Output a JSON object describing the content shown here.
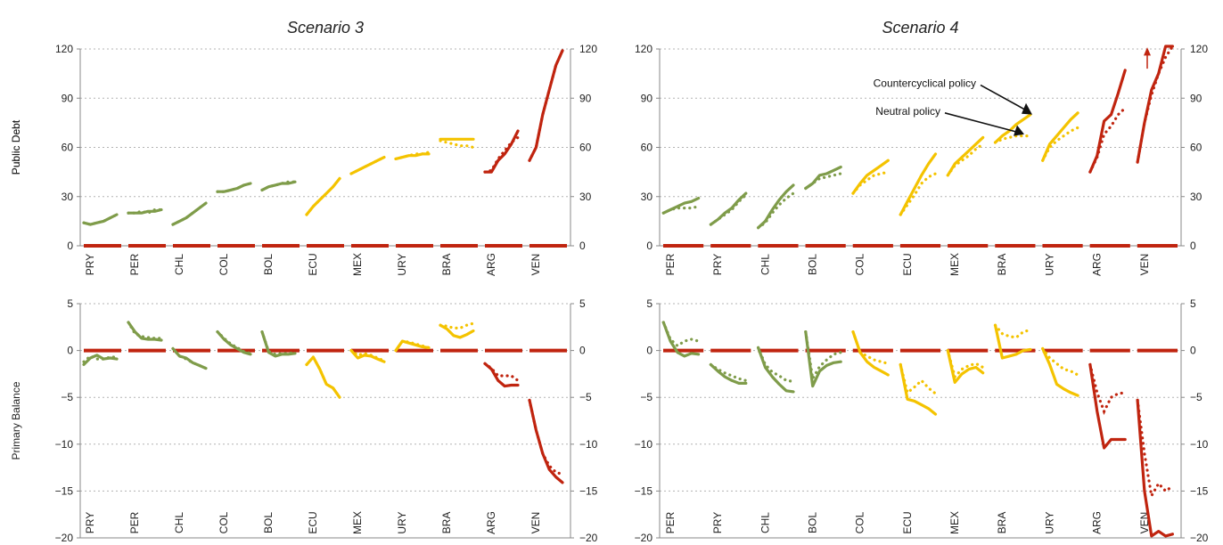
{
  "colors": {
    "green": "#7f9c4a",
    "yellow": "#f4c300",
    "red": "#c0240f",
    "grid": "#b3b3b3"
  },
  "labels": {
    "public_debt": "Public Debt",
    "primary_balance": "Primary Balance"
  },
  "chart_data": [
    {
      "type": "line",
      "title": "Scenario 3",
      "ylabel": "Public Debt",
      "ylim": [
        0,
        120
      ],
      "yticks": [
        0,
        30,
        60,
        90,
        120
      ],
      "grid": true,
      "zero_line": "dashed-red",
      "categories": [
        "PRY",
        "PER",
        "CHL",
        "COL",
        "BOL",
        "ECU",
        "MEX",
        "URY",
        "BRA",
        "ARG",
        "VEN"
      ],
      "series": [
        {
          "cat": "PRY",
          "color": "green",
          "solid": [
            14,
            13,
            14,
            15,
            17,
            19
          ],
          "dotted": [
            14,
            13,
            14,
            15,
            17,
            19
          ]
        },
        {
          "cat": "PER",
          "color": "green",
          "solid": [
            20,
            20,
            20,
            21,
            21,
            22
          ],
          "dotted": [
            20,
            20,
            21,
            20,
            22,
            22
          ]
        },
        {
          "cat": "CHL",
          "color": "green",
          "solid": [
            13,
            15,
            17,
            20,
            23,
            26
          ],
          "dotted": [
            13,
            15,
            17,
            20,
            23,
            26
          ]
        },
        {
          "cat": "COL",
          "color": "green",
          "solid": [
            33,
            33,
            34,
            35,
            37,
            38
          ],
          "dotted": [
            33,
            33,
            34,
            35,
            37,
            38
          ]
        },
        {
          "cat": "BOL",
          "color": "green",
          "solid": [
            34,
            36,
            37,
            38,
            38,
            39
          ],
          "dotted": [
            34,
            36,
            37,
            38,
            39,
            39
          ]
        },
        {
          "cat": "ECU",
          "color": "yellow",
          "solid": [
            19,
            24,
            28,
            32,
            36,
            41
          ],
          "dotted": [
            19,
            24,
            28,
            32,
            36,
            41
          ]
        },
        {
          "cat": "MEX",
          "color": "yellow",
          "solid": [
            44,
            46,
            48,
            50,
            52,
            54
          ],
          "dotted": [
            44,
            46,
            48,
            50,
            52,
            54
          ]
        },
        {
          "cat": "URY",
          "color": "yellow",
          "solid": [
            53,
            54,
            55,
            55,
            56,
            56
          ],
          "dotted": [
            53,
            54,
            55,
            56,
            56,
            57
          ]
        },
        {
          "cat": "BRA",
          "color": "yellow",
          "solid": [
            65,
            65,
            65,
            65,
            65,
            65
          ],
          "dotted": [
            64,
            63,
            62,
            61,
            61,
            60
          ]
        },
        {
          "cat": "ARG",
          "color": "red",
          "solid": [
            45,
            45,
            52,
            56,
            62,
            70
          ],
          "dotted": [
            45,
            46,
            53,
            58,
            63,
            66
          ]
        },
        {
          "cat": "VEN",
          "color": "red",
          "solid": [
            52,
            60,
            80,
            95,
            110,
            119
          ],
          "dotted": [
            52,
            60,
            80,
            95,
            110,
            119
          ]
        }
      ]
    },
    {
      "type": "line",
      "title": "Scenario 4",
      "ylabel": "Public Debt",
      "ylim": [
        0,
        120
      ],
      "yticks": [
        0,
        30,
        60,
        90,
        120
      ],
      "grid": true,
      "zero_line": "dashed-red",
      "categories": [
        "PER",
        "PRY",
        "CHL",
        "BOL",
        "COL",
        "ECU",
        "MEX",
        "BRA",
        "URY",
        "ARG",
        "VEN"
      ],
      "annotations": [
        "Countercyclical policy",
        "Neutral policy"
      ],
      "series": [
        {
          "cat": "PER",
          "color": "green",
          "solid": [
            20,
            22,
            24,
            26,
            27,
            29
          ],
          "dotted": [
            20,
            22,
            23,
            23,
            23,
            24
          ]
        },
        {
          "cat": "PRY",
          "color": "green",
          "solid": [
            13,
            16,
            20,
            23,
            28,
            32
          ],
          "dotted": [
            13,
            16,
            19,
            22,
            27,
            31
          ]
        },
        {
          "cat": "CHL",
          "color": "green",
          "solid": [
            11,
            15,
            22,
            28,
            33,
            37
          ],
          "dotted": [
            11,
            14,
            20,
            25,
            29,
            32
          ]
        },
        {
          "cat": "BOL",
          "color": "green",
          "solid": [
            35,
            38,
            43,
            44,
            46,
            48
          ],
          "dotted": [
            35,
            38,
            41,
            42,
            43,
            44
          ]
        },
        {
          "cat": "COL",
          "color": "yellow",
          "solid": [
            32,
            38,
            43,
            46,
            49,
            52
          ],
          "dotted": [
            32,
            37,
            40,
            43,
            44,
            45
          ]
        },
        {
          "cat": "ECU",
          "color": "yellow",
          "solid": [
            19,
            27,
            35,
            43,
            50,
            56
          ],
          "dotted": [
            19,
            25,
            31,
            38,
            42,
            44
          ]
        },
        {
          "cat": "MEX",
          "color": "yellow",
          "solid": [
            43,
            50,
            54,
            58,
            62,
            66
          ],
          "dotted": [
            43,
            49,
            52,
            55,
            59,
            62
          ]
        },
        {
          "cat": "BRA",
          "color": "yellow",
          "solid": [
            63,
            67,
            70,
            74,
            77,
            80
          ],
          "dotted": [
            63,
            65,
            66,
            67,
            67,
            67
          ]
        },
        {
          "cat": "URY",
          "color": "yellow",
          "solid": [
            52,
            62,
            67,
            72,
            77,
            81
          ],
          "dotted": [
            52,
            60,
            64,
            67,
            70,
            72
          ]
        },
        {
          "cat": "ARG",
          "color": "red",
          "solid": [
            45,
            55,
            76,
            80,
            93,
            107
          ],
          "dotted": [
            45,
            54,
            68,
            73,
            80,
            84
          ]
        },
        {
          "cat": "VEN",
          "color": "red",
          "solid": [
            51,
            75,
            95,
            105,
            122,
            135
          ],
          "dotted": [
            51,
            75,
            92,
            105,
            115,
            125
          ]
        }
      ]
    },
    {
      "type": "line",
      "title": "",
      "ylabel": "Primary Balance",
      "ylim": [
        -20,
        5
      ],
      "yticks": [
        -20,
        -15,
        -10,
        -5,
        0,
        5
      ],
      "grid": true,
      "zero_line": "dashed-red",
      "categories": [
        "PRY",
        "PER",
        "CHL",
        "COL",
        "BOL",
        "ECU",
        "MEX",
        "URY",
        "BRA",
        "ARG",
        "VEN"
      ],
      "series": [
        {
          "cat": "PRY",
          "color": "green",
          "solid": [
            -1.5,
            -0.8,
            -0.5,
            -0.9,
            -0.8,
            -0.9
          ],
          "dotted": [
            -1.2,
            -0.6,
            -0.9,
            -0.9,
            -0.7,
            -0.7
          ]
        },
        {
          "cat": "PER",
          "color": "green",
          "solid": [
            3,
            2,
            1.3,
            1.2,
            1.2,
            1.1
          ],
          "dotted": [
            3,
            1.8,
            1.5,
            1.4,
            1.3,
            1.3
          ]
        },
        {
          "cat": "CHL",
          "color": "green",
          "solid": [
            0.2,
            -0.6,
            -0.8,
            -1.3,
            -1.6,
            -1.9
          ],
          "dotted": [
            0.2,
            -0.6,
            -0.9,
            -1.3,
            -1.6,
            -1.9
          ]
        },
        {
          "cat": "COL",
          "color": "green",
          "solid": [
            2,
            1.2,
            0.6,
            0.2,
            -0.2,
            -0.4
          ],
          "dotted": [
            2,
            1.3,
            0.7,
            0.3,
            -0.1,
            -0.3
          ]
        },
        {
          "cat": "BOL",
          "color": "green",
          "solid": [
            2,
            -0.2,
            -0.6,
            -0.4,
            -0.4,
            -0.3
          ],
          "dotted": [
            2,
            -0.1,
            -0.4,
            -0.3,
            -0.3,
            -0.2
          ]
        },
        {
          "cat": "ECU",
          "color": "yellow",
          "solid": [
            -1.5,
            -0.7,
            -2,
            -3.6,
            -4,
            -5
          ],
          "dotted": [
            -1.5,
            -0.7,
            -2,
            -3.6,
            -4,
            -5
          ]
        },
        {
          "cat": "MEX",
          "color": "yellow",
          "solid": [
            0,
            -0.8,
            -0.5,
            -0.6,
            -0.9,
            -1.2
          ],
          "dotted": [
            0,
            -0.5,
            -0.3,
            -0.5,
            -0.8,
            -1.1
          ]
        },
        {
          "cat": "URY",
          "color": "yellow",
          "solid": [
            0,
            1,
            0.8,
            0.6,
            0.4,
            0.3
          ],
          "dotted": [
            0,
            1,
            0.9,
            0.7,
            0.5,
            0.3
          ]
        },
        {
          "cat": "BRA",
          "color": "yellow",
          "solid": [
            2.7,
            2.3,
            1.6,
            1.4,
            1.7,
            2.1
          ],
          "dotted": [
            2.7,
            2.6,
            2.4,
            2.4,
            2.7,
            2.9
          ]
        },
        {
          "cat": "ARG",
          "color": "red",
          "solid": [
            -1.4,
            -2,
            -3.2,
            -3.8,
            -3.7,
            -3.7
          ],
          "dotted": [
            -1.4,
            -1.9,
            -2.7,
            -2.7,
            -2.7,
            -3.2
          ]
        },
        {
          "cat": "VEN",
          "color": "red",
          "solid": [
            -5.3,
            -8.5,
            -11,
            -12.7,
            -13.5,
            -14.1
          ],
          "dotted": [
            -5.3,
            -8.5,
            -11,
            -12.3,
            -13,
            -13.2
          ]
        }
      ]
    },
    {
      "type": "line",
      "title": "",
      "ylabel": "",
      "ylim": [
        -20,
        5
      ],
      "yticks": [
        -20,
        -15,
        -10,
        -5,
        0,
        5
      ],
      "grid": true,
      "zero_line": "dashed-red",
      "categories": [
        "PER",
        "PRY",
        "CHL",
        "BOL",
        "COL",
        "ECU",
        "MEX",
        "BRA",
        "URY",
        "ARG",
        "VEN"
      ],
      "series": [
        {
          "cat": "PER",
          "color": "green",
          "solid": [
            3,
            1,
            -0.2,
            -0.6,
            -0.3,
            -0.4
          ],
          "dotted": [
            3,
            1.2,
            0.5,
            1,
            1.2,
            1
          ]
        },
        {
          "cat": "PRY",
          "color": "green",
          "solid": [
            -1.5,
            -2.2,
            -2.8,
            -3.2,
            -3.5,
            -3.5
          ],
          "dotted": [
            -1.5,
            -2,
            -2.4,
            -2.7,
            -3,
            -3.2
          ]
        },
        {
          "cat": "CHL",
          "color": "green",
          "solid": [
            0.3,
            -1.8,
            -2.8,
            -3.6,
            -4.3,
            -4.4
          ],
          "dotted": [
            0.3,
            -1.5,
            -2.3,
            -2.7,
            -3.2,
            -3.3
          ]
        },
        {
          "cat": "BOL",
          "color": "green",
          "solid": [
            2,
            -3.8,
            -2.2,
            -1.6,
            -1.3,
            -1.2
          ],
          "dotted": [
            2,
            -3,
            -1.7,
            -1,
            -0.4,
            -0.2
          ]
        },
        {
          "cat": "COL",
          "color": "yellow",
          "solid": [
            2,
            -0.2,
            -1.2,
            -1.8,
            -2.2,
            -2.6
          ],
          "dotted": [
            2,
            -0.2,
            -0.6,
            -1,
            -1.2,
            -1.4
          ]
        },
        {
          "cat": "ECU",
          "color": "yellow",
          "solid": [
            -1.5,
            -5.2,
            -5.4,
            -5.8,
            -6.2,
            -6.8
          ],
          "dotted": [
            -1.5,
            -4.5,
            -3.9,
            -3.2,
            -4,
            -4.6
          ]
        },
        {
          "cat": "MEX",
          "color": "yellow",
          "solid": [
            0,
            -3.4,
            -2.5,
            -2,
            -1.8,
            -2.4
          ],
          "dotted": [
            0,
            -2.8,
            -2,
            -1.6,
            -1.4,
            -1.8
          ]
        },
        {
          "cat": "BRA",
          "color": "yellow",
          "solid": [
            2.7,
            -0.8,
            -0.6,
            -0.4,
            0,
            0.1
          ],
          "dotted": [
            2.7,
            1.8,
            1.5,
            1.4,
            2,
            2.2
          ]
        },
        {
          "cat": "URY",
          "color": "yellow",
          "solid": [
            0.2,
            -1.5,
            -3.6,
            -4.1,
            -4.5,
            -4.8
          ],
          "dotted": [
            0.2,
            -0.8,
            -1.4,
            -2,
            -2.2,
            -2.6
          ]
        },
        {
          "cat": "ARG",
          "color": "red",
          "solid": [
            -1.5,
            -6.5,
            -10.4,
            -9.5,
            -9.5,
            -9.5
          ],
          "dotted": [
            -1.5,
            -4.5,
            -6.5,
            -5,
            -4.6,
            -4.5
          ]
        },
        {
          "cat": "VEN",
          "color": "red",
          "solid": [
            -5.3,
            -15,
            -19.8,
            -19.3,
            -19.8,
            -19.6
          ],
          "dotted": [
            -5.3,
            -11,
            -15.5,
            -14.2,
            -15,
            -14.5
          ]
        }
      ]
    }
  ]
}
